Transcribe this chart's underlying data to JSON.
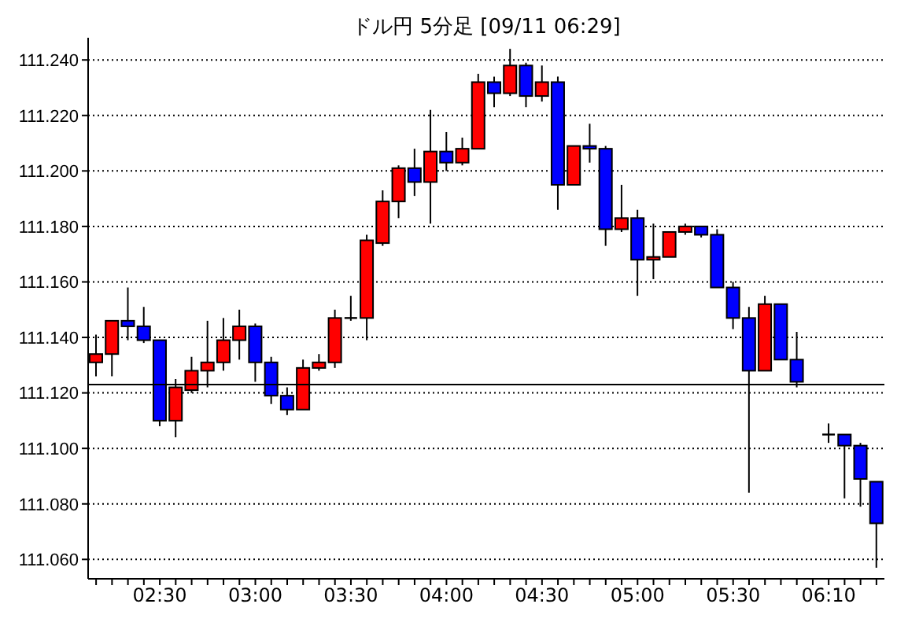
{
  "chart_data": {
    "type": "candlestick",
    "title": "ドル円 5分足 [09/11 06:29]",
    "categories": [
      null,
      null,
      null,
      null,
      "02:30",
      null,
      null,
      null,
      null,
      null,
      "03:00",
      null,
      null,
      null,
      null,
      null,
      "03:30",
      null,
      null,
      null,
      null,
      null,
      "04:00",
      null,
      null,
      null,
      null,
      null,
      "04:30",
      null,
      null,
      null,
      null,
      null,
      "05:00",
      null,
      null,
      null,
      null,
      null,
      "05:30",
      null,
      null,
      null,
      null,
      null,
      "06:10",
      null,
      null,
      null
    ],
    "ohlc": [
      [
        111.131,
        111.141,
        111.126,
        111.134
      ],
      [
        111.134,
        111.146,
        111.126,
        111.146
      ],
      [
        111.146,
        111.158,
        111.139,
        111.144
      ],
      [
        111.144,
        111.151,
        111.138,
        111.139
      ],
      [
        111.139,
        111.139,
        111.108,
        111.11
      ],
      [
        111.11,
        111.125,
        111.104,
        111.122
      ],
      [
        111.121,
        111.133,
        111.12,
        111.128
      ],
      [
        111.128,
        111.146,
        111.122,
        111.131
      ],
      [
        111.131,
        111.147,
        111.128,
        111.139
      ],
      [
        111.139,
        111.15,
        111.132,
        111.144
      ],
      [
        111.144,
        111.145,
        111.124,
        111.131
      ],
      [
        111.131,
        111.133,
        111.116,
        111.119
      ],
      [
        111.119,
        111.122,
        111.112,
        111.114
      ],
      [
        111.114,
        111.132,
        111.114,
        111.129
      ],
      [
        111.129,
        111.134,
        111.128,
        111.131
      ],
      [
        111.131,
        111.15,
        111.129,
        111.147
      ],
      [
        111.147,
        111.155,
        111.146,
        111.147
      ],
      [
        111.147,
        111.177,
        111.139,
        111.175
      ],
      [
        111.174,
        111.193,
        111.173,
        111.189
      ],
      [
        111.189,
        111.202,
        111.183,
        111.201
      ],
      [
        111.201,
        111.208,
        111.191,
        111.196
      ],
      [
        111.196,
        111.222,
        111.181,
        111.207
      ],
      [
        111.207,
        111.214,
        111.2,
        111.203
      ],
      [
        111.203,
        111.212,
        111.202,
        111.208
      ],
      [
        111.208,
        111.235,
        111.208,
        111.232
      ],
      [
        111.232,
        111.234,
        111.223,
        111.228
      ],
      [
        111.228,
        111.244,
        111.227,
        111.238
      ],
      [
        111.238,
        111.239,
        111.223,
        111.227
      ],
      [
        111.227,
        111.238,
        111.225,
        111.232
      ],
      [
        111.232,
        111.234,
        111.186,
        111.195
      ],
      [
        111.195,
        111.209,
        111.195,
        111.209
      ],
      [
        111.209,
        111.217,
        111.203,
        111.208
      ],
      [
        111.208,
        111.209,
        111.173,
        111.179
      ],
      [
        111.179,
        111.195,
        111.178,
        111.183
      ],
      [
        111.183,
        111.186,
        111.155,
        111.168
      ],
      [
        111.168,
        111.181,
        111.161,
        111.169
      ],
      [
        111.169,
        111.178,
        111.169,
        111.178
      ],
      [
        111.178,
        111.181,
        111.177,
        111.18
      ],
      [
        111.18,
        111.18,
        111.176,
        111.177
      ],
      [
        111.177,
        111.179,
        111.158,
        111.158
      ],
      [
        111.158,
        111.16,
        111.143,
        111.147
      ],
      [
        111.147,
        111.151,
        111.084,
        111.128
      ],
      [
        111.128,
        111.155,
        111.128,
        111.152
      ],
      [
        111.152,
        111.152,
        111.132,
        111.132
      ],
      [
        111.132,
        111.142,
        111.122,
        111.124
      ],
      null,
      [
        111.105,
        111.109,
        111.102,
        111.105
      ],
      [
        111.105,
        111.105,
        111.082,
        111.101
      ],
      [
        111.101,
        111.102,
        111.079,
        111.089
      ],
      [
        111.088,
        111.088,
        111.057,
        111.073
      ]
    ],
    "colors": [
      "#ff0000",
      "#ff0000",
      "#0000ff",
      "#0000ff",
      "#0000ff",
      "#ff0000",
      "#ff0000",
      "#ff0000",
      "#ff0000",
      "#ff0000",
      "#0000ff",
      "#0000ff",
      "#0000ff",
      "#ff0000",
      "#ff0000",
      "#ff0000",
      "#000000",
      "#ff0000",
      "#ff0000",
      "#ff0000",
      "#0000ff",
      "#ff0000",
      "#0000ff",
      "#ff0000",
      "#ff0000",
      "#0000ff",
      "#ff0000",
      "#0000ff",
      "#ff0000",
      "#0000ff",
      "#ff0000",
      "#0000ff",
      "#0000ff",
      "#ff0000",
      "#0000ff",
      "#ff0000",
      "#ff0000",
      "#ff0000",
      "#0000ff",
      "#0000ff",
      "#0000ff",
      "#0000ff",
      "#ff0000",
      "#0000ff",
      "#0000ff",
      null,
      "#000000",
      "#0000ff",
      "#0000ff",
      "#0000ff"
    ],
    "ylim": [
      111.053,
      111.248
    ],
    "yticks": [
      {
        "value": 111.06,
        "label": "111.060"
      },
      {
        "value": 111.08,
        "label": "111.080"
      },
      {
        "value": 111.1,
        "label": "111.100"
      },
      {
        "value": 111.12,
        "label": "111.120"
      },
      {
        "value": 111.14,
        "label": "111.140"
      },
      {
        "value": 111.16,
        "label": "111.160"
      },
      {
        "value": 111.18,
        "label": "111.180"
      },
      {
        "value": 111.2,
        "label": "111.200"
      },
      {
        "value": 111.22,
        "label": "111.220"
      },
      {
        "value": 111.24,
        "label": "111.240"
      }
    ],
    "ref_lines": [
      {
        "axis": "y",
        "value": 111.123,
        "color": "#000000"
      }
    ],
    "grid": "y"
  }
}
